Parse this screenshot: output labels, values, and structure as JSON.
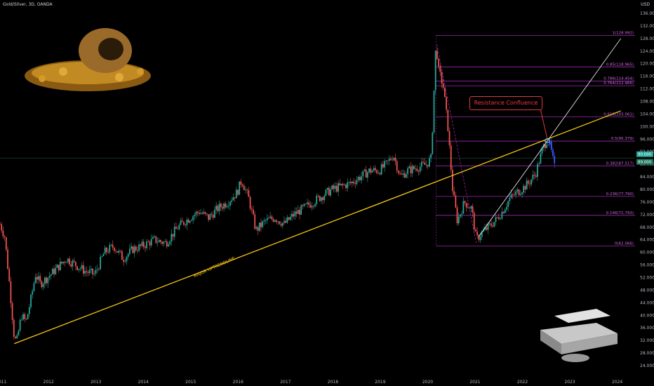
{
  "header": {
    "symbol": "Gold/Silver, 3D, OANDA",
    "currency": "USD"
  },
  "annotations": {
    "resistance": "Resistance Confluence",
    "trendline": "MAJOR UPTRENDLINE"
  },
  "price_badges": {
    "last": "90.000",
    "prev": "89.000"
  },
  "chart_data": {
    "type": "candlestick",
    "title": "Gold/Silver, 3D, OANDA",
    "ylabel": "USD",
    "ylim": [
      22,
      138
    ],
    "y_ticks": [
      24,
      28,
      32,
      36,
      40,
      44,
      48,
      52,
      56,
      60,
      64,
      68,
      72,
      76,
      80,
      84,
      88,
      92,
      96,
      100,
      104,
      108,
      112,
      116,
      120,
      124,
      128,
      132,
      136
    ],
    "x_ticks": [
      "2011",
      "2012",
      "2013",
      "2014",
      "2015",
      "2016",
      "2017",
      "2018",
      "2019",
      "2020",
      "2021",
      "2022",
      "2023",
      "2024"
    ],
    "series": [
      {
        "values": [
          [
            "2011.00",
            69
          ],
          [
            "2011.10",
            65
          ],
          [
            "2011.20",
            50
          ],
          [
            "2011.30",
            33
          ],
          [
            "2011.35",
            31.5
          ],
          [
            "2011.45",
            40
          ],
          [
            "2011.55",
            38
          ],
          [
            "2011.65",
            45
          ],
          [
            "2011.75",
            53
          ],
          [
            "2011.85",
            50
          ],
          [
            "2012.00",
            52
          ],
          [
            "2012.20",
            55
          ],
          [
            "2012.40",
            58
          ],
          [
            "2012.60",
            56
          ],
          [
            "2012.80",
            54
          ],
          [
            "2013.00",
            53
          ],
          [
            "2013.20",
            60
          ],
          [
            "2013.40",
            62
          ],
          [
            "2013.60",
            58
          ],
          [
            "2013.80",
            61
          ],
          [
            "2014.00",
            62
          ],
          [
            "2014.25",
            64
          ],
          [
            "2014.50",
            63
          ],
          [
            "2014.75",
            68
          ],
          [
            "2015.00",
            71
          ],
          [
            "2015.20",
            73
          ],
          [
            "2015.40",
            71
          ],
          [
            "2015.60",
            74
          ],
          [
            "2015.80",
            76
          ],
          [
            "2016.00",
            79
          ],
          [
            "2016.10",
            83
          ],
          [
            "2016.25",
            77
          ],
          [
            "2016.40",
            67
          ],
          [
            "2016.60",
            70
          ],
          [
            "2016.80",
            71
          ],
          [
            "2017.00",
            69
          ],
          [
            "2017.20",
            72
          ],
          [
            "2017.40",
            74
          ],
          [
            "2017.60",
            76
          ],
          [
            "2017.80",
            78
          ],
          [
            "2018.00",
            80
          ],
          [
            "2018.20",
            81
          ],
          [
            "2018.40",
            82
          ],
          [
            "2018.60",
            84
          ],
          [
            "2018.80",
            86
          ],
          [
            "2019.00",
            86
          ],
          [
            "2019.15",
            88
          ],
          [
            "2019.30",
            91
          ],
          [
            "2019.45",
            84
          ],
          [
            "2019.60",
            86
          ],
          [
            "2019.80",
            87
          ],
          [
            "2020.00",
            88
          ],
          [
            "2020.10",
            90
          ],
          [
            "2020.20",
            127
          ],
          [
            "2020.25",
            118
          ],
          [
            "2020.35",
            113
          ],
          [
            "2020.45",
            100
          ],
          [
            "2020.55",
            80
          ],
          [
            "2020.65",
            70
          ],
          [
            "2020.80",
            76
          ],
          [
            "2020.95",
            74
          ],
          [
            "2021.05",
            64
          ],
          [
            "2021.15",
            66
          ],
          [
            "2021.30",
            68
          ],
          [
            "2021.45",
            70
          ],
          [
            "2021.60",
            73
          ],
          [
            "2021.75",
            77
          ],
          [
            "2021.90",
            79
          ],
          [
            "2022.00",
            80
          ],
          [
            "2022.15",
            82
          ],
          [
            "2022.30",
            85
          ],
          [
            "2022.45",
            93
          ],
          [
            "2022.55",
            96
          ],
          [
            "2022.62",
            93
          ],
          [
            "2022.70",
            87
          ]
        ]
      }
    ],
    "trendlines": [
      {
        "name": "MAJOR UPTRENDLINE",
        "from": [
          "2011.30",
          31
        ],
        "to": [
          "2024.10",
          105
        ],
        "color": "#f5c518"
      },
      {
        "from": [
          "2021.10",
          65
        ],
        "to": [
          "2024.10",
          128
        ],
        "color": "#ffffff"
      }
    ],
    "fib_levels": [
      {
        "label": "1(128.992)",
        "value": 128.992
      },
      {
        "label": "0.786(114.454)",
        "value": 114.454
      },
      {
        "label": "0.764(112.966)",
        "value": 112.966
      },
      {
        "label": "0.618(103.061)",
        "value": 103.061
      },
      {
        "label": "0.5(95.379)",
        "value": 95.379
      },
      {
        "label": "0.382(87.517)",
        "value": 87.517
      },
      {
        "label": "0.236(77.790)",
        "value": 77.79
      },
      {
        "label": "0.146(71.793)",
        "value": 71.793
      },
      {
        "label": "0(62.066)",
        "value": 62.066
      }
    ],
    "fib_label_extra": "0.85(118.965)",
    "colors": {
      "up": "#26a69a",
      "down": "#ef5350",
      "fib": "#9c27b0",
      "trend": "#f5c518"
    }
  }
}
